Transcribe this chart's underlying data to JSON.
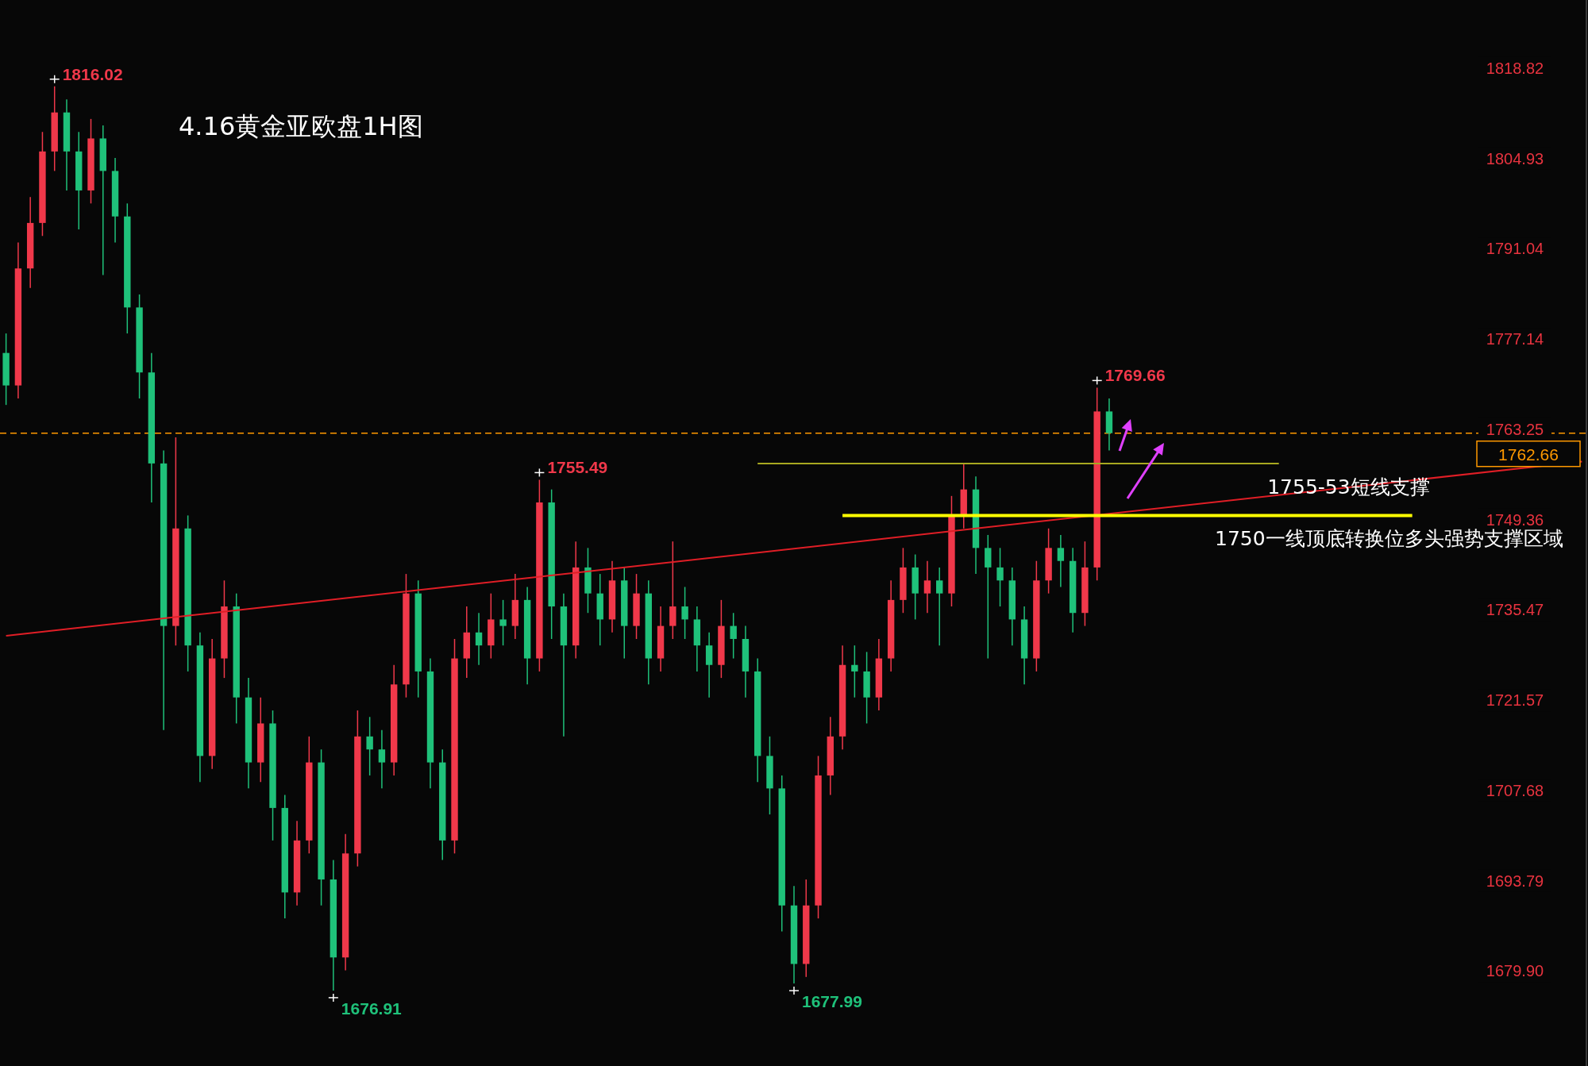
{
  "chart_data": {
    "type": "candlestick",
    "title": "4.16黄金亚欧盘1H图",
    "categories": [
      null,
      null,
      null,
      null,
      null,
      null,
      null,
      null,
      null,
      null,
      null,
      null,
      null,
      null,
      null,
      null,
      null,
      null,
      null,
      null,
      null,
      null,
      null,
      null,
      null,
      null,
      null,
      null,
      null,
      null,
      null,
      null,
      null,
      null,
      null,
      null,
      null,
      null,
      null,
      null,
      null,
      null,
      null,
      null,
      null,
      null,
      null,
      null,
      null,
      null,
      null,
      null,
      null,
      null,
      null,
      null,
      null,
      null,
      null,
      null,
      null,
      null,
      null,
      null,
      null,
      null,
      null,
      null,
      null,
      null,
      null,
      null,
      null,
      null,
      null,
      null,
      null,
      null,
      null,
      null,
      null,
      null,
      null,
      null,
      null,
      null,
      null,
      null,
      null,
      null,
      null,
      null,
      null,
      null,
      null,
      null,
      null,
      null,
      null,
      null,
      null,
      null,
      null,
      null,
      null,
      null,
      null,
      null,
      null,
      null,
      null,
      null,
      null,
      null,
      null,
      null,
      null,
      null,
      null,
      null,
      null,
      null,
      null,
      null,
      null,
      null,
      null,
      null,
      null,
      null,
      null
    ],
    "ylim": [
      1665.3,
      1829.3
    ],
    "yticks": [
      {
        "value": 1679.9,
        "label": "1679.90"
      },
      1693.79,
      1707.68,
      1721.57,
      1735.47,
      1749.36,
      1763.25,
      1777.14,
      1791.04,
      1804.93,
      1818.82
    ],
    "tick_labels": "y",
    "series": [
      {
        "ohlc": [
          [
            1775,
            1778,
            1767,
            1770
          ],
          [
            1770,
            1792,
            1768,
            1788
          ],
          [
            1788,
            1799,
            1785,
            1795
          ],
          [
            1795,
            1809,
            1793,
            1806
          ],
          [
            1806,
            1816.02,
            1803,
            1812
          ],
          [
            1812,
            1814,
            1800,
            1806
          ],
          [
            1806,
            1809,
            1794,
            1800
          ],
          [
            1800,
            1811,
            1798,
            1808
          ],
          [
            1808,
            1810,
            1787,
            1803
          ],
          [
            1803,
            1805,
            1792,
            1796
          ],
          [
            1796,
            1798,
            1778,
            1782
          ],
          [
            1782,
            1784,
            1768,
            1772
          ],
          [
            1772,
            1775,
            1752,
            1758
          ],
          [
            1758,
            1760,
            1717,
            1733
          ],
          [
            1733,
            1762,
            1730,
            1748
          ],
          [
            1748,
            1750,
            1726,
            1730
          ],
          [
            1730,
            1732,
            1709,
            1713
          ],
          [
            1713,
            1731,
            1711,
            1728
          ],
          [
            1728,
            1740,
            1725,
            1736
          ],
          [
            1736,
            1738,
            1718,
            1722
          ],
          [
            1722,
            1725,
            1708,
            1712
          ],
          [
            1712,
            1722,
            1709,
            1718
          ],
          [
            1718,
            1720,
            1700,
            1705
          ],
          [
            1705,
            1707,
            1688,
            1692
          ],
          [
            1692,
            1703,
            1690,
            1700
          ],
          [
            1700,
            1716,
            1698,
            1712
          ],
          [
            1712,
            1714,
            1690,
            1694
          ],
          [
            1694,
            1697,
            1676.91,
            1682
          ],
          [
            1682,
            1701,
            1680,
            1698
          ],
          [
            1698,
            1720,
            1696,
            1716
          ],
          [
            1716,
            1719,
            1710,
            1714
          ],
          [
            1714,
            1717,
            1708,
            1712
          ],
          [
            1712,
            1727,
            1710,
            1724
          ],
          [
            1724,
            1741,
            1722,
            1738
          ],
          [
            1738,
            1740,
            1722,
            1726
          ],
          [
            1726,
            1728,
            1708,
            1712
          ],
          [
            1712,
            1714,
            1697,
            1700
          ],
          [
            1700,
            1731,
            1698,
            1728
          ],
          [
            1728,
            1736,
            1725,
            1732
          ],
          [
            1732,
            1735,
            1727,
            1730
          ],
          [
            1730,
            1738,
            1728,
            1734
          ],
          [
            1734,
            1737,
            1730,
            1733
          ],
          [
            1733,
            1741,
            1731,
            1737
          ],
          [
            1737,
            1739,
            1724,
            1728
          ],
          [
            1728,
            1755.49,
            1726,
            1752
          ],
          [
            1752,
            1754,
            1731,
            1736
          ],
          [
            1736,
            1738,
            1716,
            1730
          ],
          [
            1730,
            1746,
            1728,
            1742
          ],
          [
            1742,
            1745,
            1735,
            1738
          ],
          [
            1738,
            1741,
            1730,
            1734
          ],
          [
            1734,
            1743,
            1732,
            1740
          ],
          [
            1740,
            1742,
            1728,
            1733
          ],
          [
            1733,
            1741,
            1731,
            1738
          ],
          [
            1738,
            1740,
            1724,
            1728
          ],
          [
            1728,
            1736,
            1726,
            1733
          ],
          [
            1733,
            1746,
            1731,
            1736
          ],
          [
            1736,
            1739,
            1731,
            1734
          ],
          [
            1734,
            1736,
            1726,
            1730
          ],
          [
            1730,
            1732,
            1722,
            1727
          ],
          [
            1727,
            1737,
            1725,
            1733
          ],
          [
            1733,
            1735,
            1728,
            1731
          ],
          [
            1731,
            1733,
            1722,
            1726
          ],
          [
            1726,
            1728,
            1709,
            1713
          ],
          [
            1713,
            1716,
            1704,
            1708
          ],
          [
            1708,
            1710,
            1686,
            1690
          ],
          [
            1690,
            1693,
            1677.99,
            1681
          ],
          [
            1681,
            1694,
            1679,
            1690
          ],
          [
            1690,
            1713,
            1688,
            1710
          ],
          [
            1710,
            1719,
            1707,
            1716
          ],
          [
            1716,
            1730,
            1714,
            1727
          ],
          [
            1727,
            1730,
            1722,
            1726
          ],
          [
            1726,
            1729,
            1718,
            1722
          ],
          [
            1722,
            1731,
            1720,
            1728
          ],
          [
            1728,
            1740,
            1726,
            1737
          ],
          [
            1737,
            1745,
            1735,
            1742
          ],
          [
            1742,
            1744,
            1734,
            1738
          ],
          [
            1738,
            1743,
            1735,
            1740
          ],
          [
            1740,
            1742,
            1730,
            1738
          ],
          [
            1738,
            1753,
            1736,
            1750
          ],
          [
            1750,
            1758,
            1748,
            1754
          ],
          [
            1754,
            1756,
            1741,
            1745
          ],
          [
            1745,
            1747,
            1728,
            1742
          ],
          [
            1742,
            1745,
            1736,
            1740
          ],
          [
            1740,
            1742,
            1730,
            1734
          ],
          [
            1734,
            1736,
            1724,
            1728
          ],
          [
            1728,
            1743,
            1726,
            1740
          ],
          [
            1740,
            1748,
            1738,
            1745
          ],
          [
            1745,
            1747,
            1739,
            1743
          ],
          [
            1743,
            1745,
            1732,
            1735
          ],
          [
            1735,
            1746,
            1733,
            1742
          ],
          [
            1742,
            1769.66,
            1740,
            1766
          ],
          [
            1766,
            1768,
            1760,
            1762.66
          ],
          null,
          null,
          null,
          null,
          null,
          null,
          null,
          null,
          null,
          null,
          null,
          null,
          null,
          null,
          null,
          null,
          null,
          null,
          null,
          null,
          null,
          null,
          null,
          null,
          null,
          null,
          null,
          null,
          null,
          null,
          null,
          null,
          null,
          null,
          null,
          null,
          null,
          null,
          null
        ],
        "colors": [
          "#1fc17a",
          "#f0384a",
          "#f0384a",
          "#f0384a",
          "#f0384a",
          "#1fc17a",
          "#1fc17a",
          "#f0384a",
          "#1fc17a",
          "#1fc17a",
          "#1fc17a",
          "#1fc17a",
          "#1fc17a",
          "#1fc17a",
          "#f0384a",
          "#1fc17a",
          "#1fc17a",
          "#f0384a",
          "#f0384a",
          "#1fc17a",
          "#1fc17a",
          "#f0384a",
          "#1fc17a",
          "#1fc17a",
          "#f0384a",
          "#f0384a",
          "#1fc17a",
          "#1fc17a",
          "#f0384a",
          "#f0384a",
          "#1fc17a",
          "#1fc17a",
          "#f0384a",
          "#f0384a",
          "#1fc17a",
          "#1fc17a",
          "#1fc17a",
          "#f0384a",
          "#f0384a",
          "#1fc17a",
          "#f0384a",
          "#1fc17a",
          "#f0384a",
          "#1fc17a",
          "#f0384a",
          "#1fc17a",
          "#1fc17a",
          "#f0384a",
          "#1fc17a",
          "#1fc17a",
          "#f0384a",
          "#1fc17a",
          "#f0384a",
          "#1fc17a",
          "#f0384a",
          "#f0384a",
          "#1fc17a",
          "#1fc17a",
          "#1fc17a",
          "#f0384a",
          "#1fc17a",
          "#1fc17a",
          "#1fc17a",
          "#1fc17a",
          "#1fc17a",
          "#1fc17a",
          "#f0384a",
          "#f0384a",
          "#f0384a",
          "#f0384a",
          "#1fc17a",
          "#1fc17a",
          "#f0384a",
          "#f0384a",
          "#f0384a",
          "#1fc17a",
          "#f0384a",
          "#1fc17a",
          "#f0384a",
          "#f0384a",
          "#1fc17a",
          "#1fc17a",
          "#1fc17a",
          "#1fc17a",
          "#1fc17a",
          "#f0384a",
          "#f0384a",
          "#1fc17a",
          "#1fc17a",
          "#f0384a",
          "#f0384a",
          "#1fc17a",
          null,
          null,
          null,
          null,
          null,
          null,
          null,
          null,
          null,
          null,
          null,
          null,
          null,
          null,
          null,
          null,
          null,
          null,
          null,
          null,
          null,
          null,
          null,
          null,
          null,
          null,
          null,
          null,
          null,
          null,
          null,
          null,
          null,
          null,
          null,
          null,
          null,
          null,
          null
        ]
      },
      {
        "type": "line",
        "color": "#e01e26",
        "values": [
          1731.5,
          null,
          null,
          null,
          null,
          null,
          null,
          null,
          null,
          null,
          null,
          null,
          null,
          null,
          null,
          null,
          null,
          null,
          null,
          null,
          null,
          null,
          null,
          null,
          null,
          null,
          null,
          null,
          null,
          null,
          null,
          null,
          null,
          null,
          null,
          null,
          null,
          null,
          null,
          null,
          null,
          null,
          null,
          null,
          null,
          null,
          null,
          null,
          null,
          null,
          null,
          null,
          null,
          null,
          null,
          null,
          null,
          null,
          null,
          null,
          null,
          null,
          null,
          null,
          null,
          null,
          null,
          null,
          null,
          null,
          null,
          null,
          null,
          null,
          null,
          null,
          null,
          null,
          null,
          null,
          null,
          null,
          null,
          null,
          null,
          null,
          null,
          null,
          null,
          null,
          null,
          null,
          null,
          null,
          null,
          null,
          null,
          null,
          null,
          null,
          null,
          null,
          null,
          null,
          null,
          null,
          null,
          null,
          null,
          null,
          null,
          null,
          null,
          null,
          null,
          null,
          null,
          null,
          null,
          null,
          null,
          null,
          null,
          null,
          null,
          null,
          null,
          null,
          null,
          null,
          1758.3
        ]
      },
      {
        "type": "line",
        "color": "#a8a820",
        "values": [
          null,
          null,
          null,
          null,
          null,
          null,
          null,
          null,
          null,
          null,
          null,
          null,
          null,
          null,
          null,
          null,
          null,
          null,
          null,
          null,
          null,
          null,
          null,
          null,
          null,
          null,
          null,
          null,
          null,
          null,
          null,
          null,
          null,
          null,
          null,
          null,
          null,
          null,
          null,
          null,
          null,
          null,
          null,
          null,
          null,
          null,
          null,
          null,
          null,
          null,
          null,
          null,
          null,
          null,
          null,
          null,
          null,
          null,
          null,
          null,
          null,
          null,
          1758,
          1758,
          1758,
          1758,
          1758,
          1758,
          1758,
          1758,
          1758,
          1758,
          1758,
          1758,
          1758,
          1758,
          1758,
          1758,
          1758,
          1758,
          1758,
          1758,
          1758,
          1758,
          1758,
          1758,
          1758,
          1758,
          1758,
          1758,
          1758,
          1758,
          1758,
          1758,
          1758,
          1758,
          1758,
          1758,
          1758,
          1758,
          1758,
          1758,
          1758,
          1758,
          1758,
          1758,
          null,
          null,
          null,
          null,
          null,
          null,
          null,
          null,
          null,
          null,
          null,
          null,
          null,
          null,
          null,
          null,
          null,
          null,
          null,
          null,
          null,
          null,
          null,
          null,
          null
        ]
      },
      {
        "type": "line",
        "color": "#ffff00",
        "values": [
          null,
          null,
          null,
          null,
          null,
          null,
          null,
          null,
          null,
          null,
          null,
          null,
          null,
          null,
          null,
          null,
          null,
          null,
          null,
          null,
          null,
          null,
          null,
          null,
          null,
          null,
          null,
          null,
          null,
          null,
          null,
          null,
          null,
          null,
          null,
          null,
          null,
          null,
          null,
          null,
          null,
          null,
          null,
          null,
          null,
          null,
          null,
          null,
          null,
          null,
          null,
          null,
          null,
          null,
          null,
          null,
          null,
          null,
          null,
          null,
          null,
          null,
          null,
          null,
          null,
          null,
          null,
          null,
          null,
          1750,
          1750,
          1750,
          1750,
          1750,
          1750,
          1750,
          1750,
          1750,
          1750,
          1750,
          1750,
          1750,
          1750,
          1750,
          1750,
          1750,
          1750,
          1750,
          1750,
          1750,
          1750,
          1750,
          1750,
          1750,
          1750,
          1750,
          1750,
          1750,
          1750,
          1750,
          1750,
          1750,
          1750,
          1750,
          1750,
          1750,
          1750,
          1750,
          1750,
          1750,
          1750,
          1750,
          1750,
          1750,
          1750,
          1750,
          1750,
          null,
          null,
          null,
          null,
          null,
          null,
          null,
          null,
          null,
          null,
          null,
          null,
          null,
          null
        ]
      }
    ],
    "ref_lines": [
      {
        "axis": "y",
        "value": 1762.66,
        "label": "1762.66",
        "color": "#ff9900",
        "line_style": "dashed"
      }
    ],
    "annotations": [
      "1816.02",
      "1676.91",
      "1755.49",
      "1677.99",
      "1769.66",
      "1755-53短线支撑",
      "1750一线顶底转换位多头强势支撑区域"
    ]
  }
}
